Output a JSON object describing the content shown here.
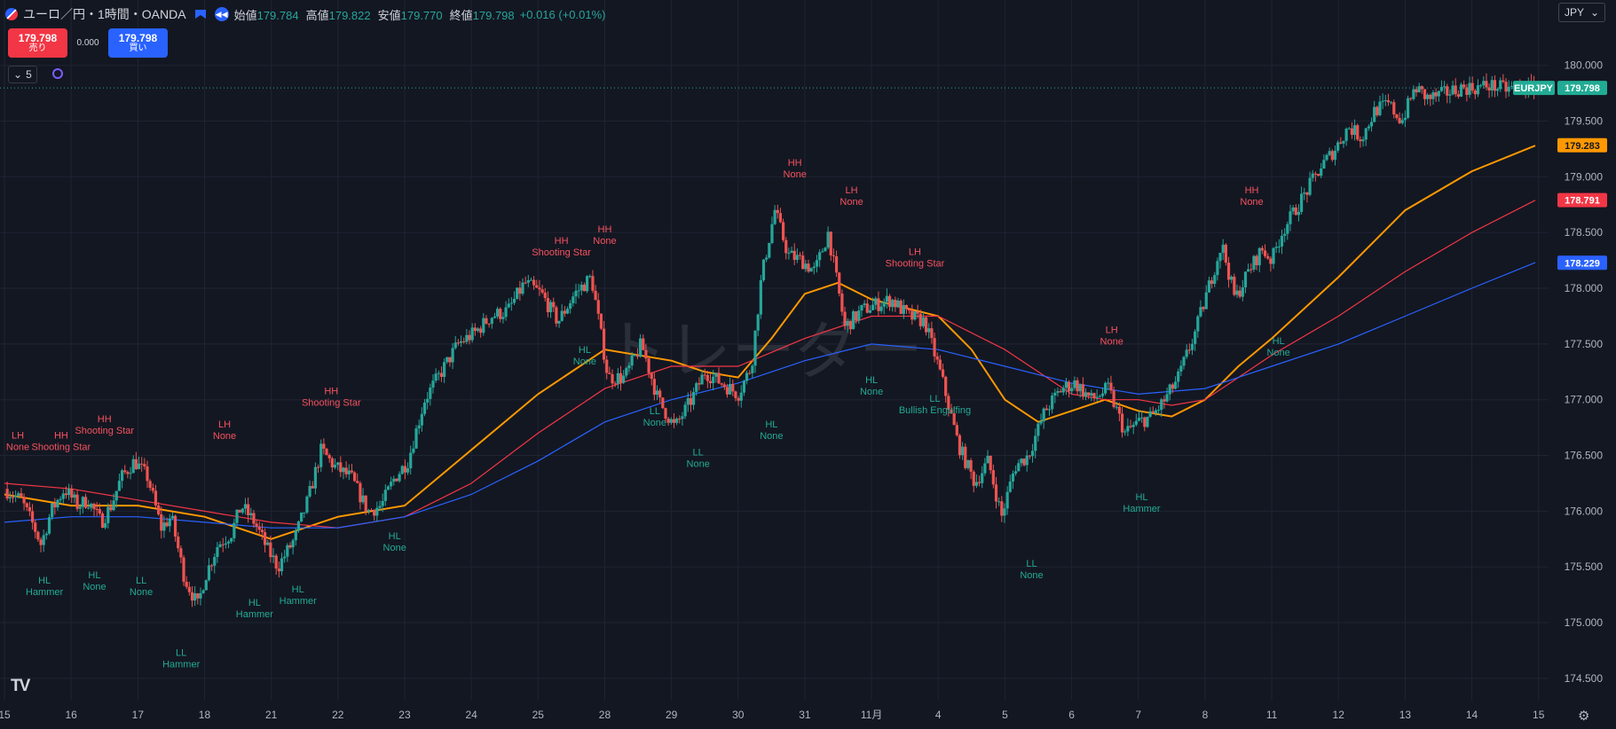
{
  "header": {
    "symbol_title": "ユーロ／円・1時間・OANDA",
    "open_label": "始値",
    "open_value": "179.784",
    "high_label": "高値",
    "high_value": "179.822",
    "low_label": "安値",
    "low_value": "179.770",
    "close_label": "終値",
    "close_value": "179.798",
    "change": "+0.016 (+0.01%)"
  },
  "trade": {
    "sell_price": "179.798",
    "sell_label": "売り",
    "spread": "0.000",
    "buy_price": "179.798",
    "buy_label": "買い"
  },
  "indicators_toggle": {
    "count": "5"
  },
  "currency": {
    "selected": "JPY"
  },
  "colors": {
    "background": "#131722",
    "grid": "#1f2433",
    "up": "#26a69a",
    "down": "#ef5350",
    "ma_fast": "#ff9800",
    "ma_mid": "#f23645",
    "ma_slow": "#2962ff",
    "label_high": "#f7525f",
    "label_low": "#22ab94"
  },
  "chart_data": {
    "type": "line",
    "title": "ユーロ／円・1時間・OANDA",
    "ylim": [
      174.3,
      180.3
    ],
    "y_ticks": [
      "180.000",
      "179.500",
      "179.000",
      "178.500",
      "178.000",
      "177.500",
      "177.000",
      "176.500",
      "176.000",
      "175.500",
      "175.000",
      "174.500"
    ],
    "x_ticks": [
      "15",
      "16",
      "17",
      "18",
      "21",
      "22",
      "23",
      "24",
      "25",
      "28",
      "29",
      "30",
      "31",
      "11月",
      "4",
      "5",
      "6",
      "7",
      "8",
      "11",
      "12",
      "13",
      "14",
      "15"
    ],
    "x_ticks_at": [
      0,
      1,
      2,
      3,
      4,
      5,
      6,
      7,
      8,
      9,
      10,
      11,
      12,
      13,
      14,
      15,
      16,
      17,
      18,
      19,
      20,
      21,
      22,
      23
    ],
    "x_range": [
      0,
      23.15
    ],
    "price_series": {
      "name": "EURJPY",
      "x": [
        0,
        0.25,
        0.45,
        0.55,
        0.7,
        0.9,
        1.1,
        1.25,
        1.45,
        1.6,
        1.75,
        1.95,
        2.15,
        2.35,
        2.5,
        2.7,
        2.9,
        3.0,
        3.2,
        3.4,
        3.55,
        3.75,
        3.95,
        4.1,
        4.35,
        4.55,
        4.75,
        4.95,
        5.2,
        5.45,
        5.65,
        5.85,
        6.05,
        6.3,
        6.55,
        6.8,
        7.05,
        7.3,
        7.55,
        7.8,
        8.05,
        8.3,
        8.55,
        8.8,
        9.05,
        9.3,
        9.55,
        9.8,
        10.05,
        10.3,
        10.5,
        10.75,
        11.0,
        11.2,
        11.35,
        11.55,
        11.75,
        11.95,
        12.15,
        12.35,
        12.6,
        12.85,
        13.05,
        13.3,
        13.55,
        13.8,
        14.05,
        14.3,
        14.55,
        14.75,
        14.95,
        15.15,
        15.35,
        15.6,
        15.85,
        16.05,
        16.3,
        16.55,
        16.8,
        17.0,
        17.2,
        17.4,
        17.6,
        17.85,
        18.05,
        18.25,
        18.45,
        18.65,
        18.85,
        19.0,
        19.15,
        19.35,
        19.55,
        19.75,
        19.95,
        20.15,
        20.35,
        20.55,
        20.75,
        20.95,
        21.15,
        21.35,
        21.6,
        21.85,
        22.05,
        22.25,
        22.5,
        22.75,
        22.95
      ],
      "values": [
        176.2,
        176.1,
        175.85,
        175.7,
        176.0,
        176.2,
        176.05,
        176.1,
        175.9,
        176.05,
        176.3,
        176.45,
        176.3,
        175.85,
        175.95,
        175.4,
        175.15,
        175.4,
        175.7,
        175.8,
        176.05,
        175.9,
        175.65,
        175.5,
        175.75,
        176.1,
        176.55,
        176.4,
        176.3,
        176.0,
        176.05,
        176.3,
        176.45,
        177.0,
        177.25,
        177.5,
        177.6,
        177.75,
        177.8,
        178.05,
        177.95,
        177.7,
        177.95,
        178.1,
        177.2,
        177.2,
        177.5,
        177.0,
        176.75,
        177.0,
        177.25,
        177.15,
        177.05,
        177.3,
        178.1,
        178.7,
        178.3,
        178.25,
        178.15,
        178.5,
        177.65,
        177.8,
        177.85,
        177.9,
        177.75,
        177.7,
        177.2,
        176.6,
        176.25,
        176.45,
        175.95,
        176.4,
        176.5,
        176.9,
        177.1,
        177.15,
        177.0,
        177.1,
        176.7,
        176.8,
        176.85,
        177.0,
        177.2,
        177.6,
        178.0,
        178.4,
        177.9,
        178.15,
        178.35,
        178.25,
        178.5,
        178.7,
        178.9,
        179.1,
        179.25,
        179.45,
        179.35,
        179.6,
        179.65,
        179.5,
        179.8,
        179.7,
        179.75,
        179.8,
        179.798,
        179.82,
        179.79,
        179.8,
        179.798
      ]
    },
    "series": [
      {
        "name": "",
        "color": "#ff9800",
        "x": [
          0,
          1,
          2,
          3,
          4,
          5,
          6,
          7,
          8,
          9,
          10,
          10.5,
          11,
          11.5,
          12,
          12.5,
          13,
          14,
          14.5,
          15,
          15.5,
          16,
          16.5,
          17,
          17.5,
          18,
          18.5,
          19,
          20,
          21,
          22,
          22.95
        ],
        "values": [
          176.15,
          176.05,
          176.05,
          175.95,
          175.75,
          175.95,
          176.05,
          176.55,
          177.05,
          177.45,
          177.35,
          177.25,
          177.2,
          177.55,
          177.95,
          178.05,
          177.9,
          177.75,
          177.45,
          177.0,
          176.8,
          176.9,
          177.0,
          176.9,
          176.85,
          177.0,
          177.3,
          177.55,
          178.1,
          178.7,
          179.05,
          179.28
        ]
      },
      {
        "name": "",
        "color": "#f23645",
        "x": [
          0,
          1,
          2,
          3,
          4,
          5,
          6,
          7,
          8,
          9,
          10,
          11,
          12,
          13,
          14,
          15,
          15.5,
          16,
          16.5,
          17,
          17.5,
          18,
          18.5,
          19,
          20,
          21,
          22,
          22.95
        ],
        "values": [
          176.25,
          176.2,
          176.1,
          176.0,
          175.9,
          175.85,
          175.95,
          176.25,
          176.7,
          177.1,
          177.3,
          177.3,
          177.55,
          177.75,
          177.75,
          177.45,
          177.25,
          177.05,
          177.0,
          177.0,
          176.95,
          177.0,
          177.2,
          177.4,
          177.75,
          178.15,
          178.5,
          178.79
        ]
      },
      {
        "name": "",
        "color": "#2962ff",
        "x": [
          0,
          1,
          2,
          3,
          4,
          5,
          6,
          7,
          8,
          9,
          10,
          11,
          12,
          13,
          14,
          15,
          16,
          17,
          18,
          19,
          20,
          21,
          22,
          22.95
        ],
        "values": [
          175.9,
          175.95,
          175.95,
          175.9,
          175.85,
          175.85,
          175.95,
          176.15,
          176.45,
          176.8,
          177.0,
          177.15,
          177.35,
          177.5,
          177.45,
          177.3,
          177.15,
          177.05,
          177.1,
          177.3,
          177.5,
          177.75,
          178.0,
          178.23
        ]
      }
    ],
    "price_tags": [
      {
        "text": "179.798",
        "value": 179.798,
        "color": "#22ab94",
        "name": "EURJPY"
      },
      {
        "text": "179.283",
        "value": 179.283,
        "color": "#ff9800"
      },
      {
        "text": "178.791",
        "value": 178.791,
        "color": "#f23645"
      },
      {
        "text": "178.229",
        "value": 178.229,
        "color": "#2962ff"
      }
    ],
    "annotations": [
      {
        "x": 0.2,
        "y": 176.65,
        "text": [
          "LH",
          "None"
        ],
        "type": "high"
      },
      {
        "x": 0.85,
        "y": 176.65,
        "text": [
          "HH",
          "Shooting Star"
        ],
        "type": "high"
      },
      {
        "x": 1.5,
        "y": 176.8,
        "text": [
          "HH",
          "Shooting Star"
        ],
        "type": "high"
      },
      {
        "x": 3.3,
        "y": 176.75,
        "text": [
          "LH",
          "None"
        ],
        "type": "high"
      },
      {
        "x": 4.9,
        "y": 177.05,
        "text": [
          "HH",
          "Shooting Star"
        ],
        "type": "high"
      },
      {
        "x": 8.35,
        "y": 178.4,
        "text": [
          "HH",
          "Shooting Star"
        ],
        "type": "high"
      },
      {
        "x": 9.0,
        "y": 178.5,
        "text": [
          "HH",
          "None"
        ],
        "type": "high"
      },
      {
        "x": 11.85,
        "y": 179.1,
        "text": [
          "HH",
          "None"
        ],
        "type": "high"
      },
      {
        "x": 12.7,
        "y": 178.85,
        "text": [
          "LH",
          "None"
        ],
        "type": "high"
      },
      {
        "x": 13.65,
        "y": 178.3,
        "text": [
          "LH",
          "Shooting Star"
        ],
        "type": "high"
      },
      {
        "x": 16.6,
        "y": 177.6,
        "text": [
          "LH",
          "None"
        ],
        "type": "high"
      },
      {
        "x": 18.7,
        "y": 178.85,
        "text": [
          "HH",
          "None"
        ],
        "type": "high"
      },
      {
        "x": 0.6,
        "y": 175.35,
        "text": [
          "HL",
          "Hammer"
        ],
        "type": "low"
      },
      {
        "x": 1.35,
        "y": 175.4,
        "text": [
          "HL",
          "None"
        ],
        "type": "low"
      },
      {
        "x": 2.05,
        "y": 175.35,
        "text": [
          "LL",
          "None"
        ],
        "type": "low"
      },
      {
        "x": 2.65,
        "y": 174.7,
        "text": [
          "LL",
          "Hammer"
        ],
        "type": "low"
      },
      {
        "x": 3.75,
        "y": 175.15,
        "text": [
          "HL",
          "Hammer"
        ],
        "type": "low"
      },
      {
        "x": 4.4,
        "y": 175.27,
        "text": [
          "HL",
          "Hammer"
        ],
        "type": "low"
      },
      {
        "x": 5.85,
        "y": 175.75,
        "text": [
          "HL",
          "None"
        ],
        "type": "low"
      },
      {
        "x": 8.7,
        "y": 177.42,
        "text": [
          "HL",
          "None"
        ],
        "type": "low"
      },
      {
        "x": 9.75,
        "y": 176.87,
        "text": [
          "LL",
          "None"
        ],
        "type": "low"
      },
      {
        "x": 10.4,
        "y": 176.5,
        "text": [
          "LL",
          "None"
        ],
        "type": "low"
      },
      {
        "x": 11.5,
        "y": 176.75,
        "text": [
          "HL",
          "None"
        ],
        "type": "low"
      },
      {
        "x": 13.0,
        "y": 177.15,
        "text": [
          "HL",
          "None"
        ],
        "type": "low"
      },
      {
        "x": 13.95,
        "y": 176.98,
        "text": [
          "LL",
          "Bullish Engulfing"
        ],
        "type": "low"
      },
      {
        "x": 15.4,
        "y": 175.5,
        "text": [
          "LL",
          "None"
        ],
        "type": "low"
      },
      {
        "x": 17.05,
        "y": 176.1,
        "text": [
          "HL",
          "Hammer"
        ],
        "type": "low"
      },
      {
        "x": 19.1,
        "y": 177.5,
        "text": [
          "HL",
          "None"
        ],
        "type": "low"
      }
    ],
    "grid": true,
    "watermark": "トレーダー"
  }
}
